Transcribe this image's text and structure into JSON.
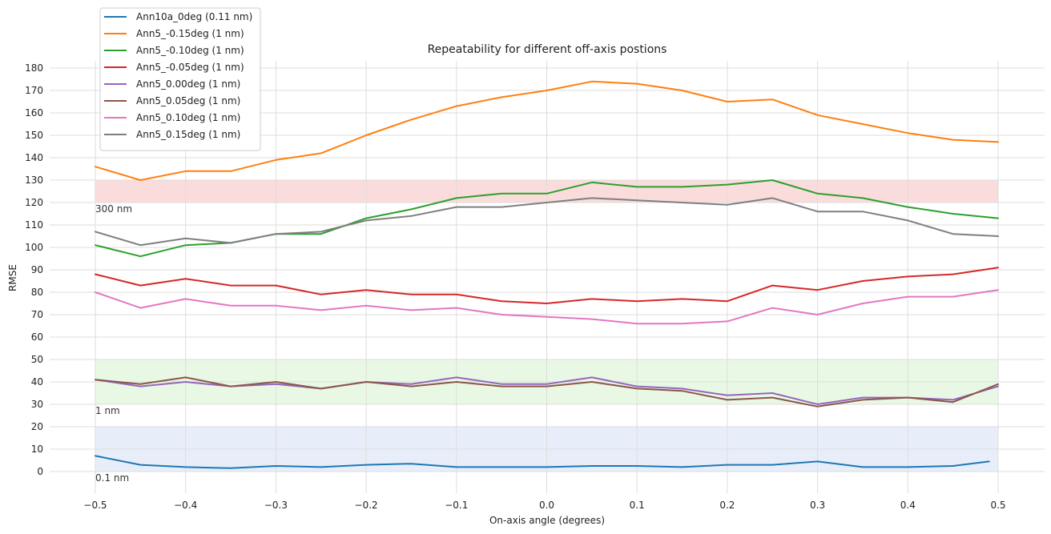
{
  "chart_data": {
    "type": "line",
    "title": "Repeatability for different off-axis postions",
    "xlabel": "On-axis angle (degrees)",
    "ylabel": "RMSE",
    "xlim": [
      -0.5,
      0.5
    ],
    "ylim": [
      0,
      180
    ],
    "xticks": [
      -0.5,
      -0.4,
      -0.3,
      -0.2,
      -0.1,
      0.0,
      0.1,
      0.2,
      0.3,
      0.4,
      0.5
    ],
    "xtick_labels": [
      "−0.5",
      "−0.4",
      "−0.3",
      "−0.2",
      "−0.1",
      "0.0",
      "0.1",
      "0.2",
      "0.3",
      "0.4",
      "0.5"
    ],
    "yticks": [
      0,
      10,
      20,
      30,
      40,
      50,
      60,
      70,
      80,
      90,
      100,
      110,
      120,
      130,
      140,
      150,
      160,
      170,
      180
    ],
    "grid": true,
    "legend_position": "top-left",
    "bands": [
      {
        "label": "300 nm",
        "y0": 120,
        "y1": 130,
        "color": "#fbdcdc"
      },
      {
        "label": "1 nm",
        "y0": 30,
        "y1": 50,
        "color": "#e9f8e5"
      },
      {
        "label": "0.1 nm",
        "y0": 0,
        "y1": 20,
        "color": "#e8eef9"
      }
    ],
    "x": [
      -0.5,
      -0.45,
      -0.4,
      -0.35,
      -0.3,
      -0.25,
      -0.2,
      -0.15,
      -0.1,
      -0.05,
      0.0,
      0.05,
      0.1,
      0.15,
      0.2,
      0.25,
      0.3,
      0.35,
      0.4,
      0.45,
      0.5
    ],
    "series": [
      {
        "name": "Ann10a_0deg (0.11 nm)",
        "color": "#1f77b4",
        "x": [
          -0.5,
          -0.45,
          -0.4,
          -0.35,
          -0.3,
          -0.25,
          -0.2,
          -0.15,
          -0.1,
          -0.05,
          0.0,
          0.05,
          0.1,
          0.15,
          0.2,
          0.25,
          0.3,
          0.35,
          0.4,
          0.45,
          0.49
        ],
        "values": [
          7,
          3,
          2,
          1.5,
          2.5,
          2,
          3,
          3.5,
          2,
          2,
          2,
          2.5,
          2.5,
          2,
          3,
          3,
          4.5,
          2,
          2,
          2.5,
          4.5
        ]
      },
      {
        "name": "Ann5_-0.15deg (1 nm)",
        "color": "#ff7f0e",
        "values": [
          136,
          130,
          134,
          134,
          139,
          142,
          150,
          157,
          163,
          167,
          170,
          174,
          173,
          170,
          165,
          166,
          159,
          155,
          151,
          148,
          147
        ]
      },
      {
        "name": "Ann5_-0.10deg (1 nm)",
        "color": "#2ca02c",
        "values": [
          101,
          96,
          101,
          102,
          106,
          106,
          113,
          117,
          122,
          124,
          124,
          129,
          127,
          127,
          128,
          130,
          124,
          122,
          118,
          115,
          113
        ]
      },
      {
        "name": "Ann5_-0.05deg (1 nm)",
        "color": "#d62728",
        "values": [
          88,
          83,
          86,
          83,
          83,
          79,
          81,
          79,
          79,
          76,
          75,
          77,
          76,
          77,
          76,
          83,
          81,
          85,
          87,
          88,
          91
        ]
      },
      {
        "name": "Ann5_0.00deg (1 nm)",
        "color": "#9467bd",
        "values": [
          41,
          38,
          40,
          38,
          39,
          37,
          40,
          39,
          42,
          39,
          39,
          42,
          38,
          37,
          34,
          35,
          30,
          33,
          33,
          32,
          38
        ]
      },
      {
        "name": "Ann5_0.05deg (1 nm)",
        "color": "#8c564b",
        "values": [
          41,
          39,
          42,
          38,
          40,
          37,
          40,
          38,
          40,
          38,
          38,
          40,
          37,
          36,
          32,
          33,
          29,
          32,
          33,
          31,
          39
        ]
      },
      {
        "name": "Ann5_0.10deg (1 nm)",
        "color": "#e377c2",
        "values": [
          80,
          73,
          77,
          74,
          74,
          72,
          74,
          72,
          73,
          70,
          69,
          68,
          66,
          66,
          67,
          73,
          70,
          75,
          78,
          78,
          81
        ]
      },
      {
        "name": "Ann5_0.15deg (1 nm)",
        "color": "#7f7f7f",
        "values": [
          107,
          101,
          104,
          102,
          106,
          107,
          112,
          114,
          118,
          118,
          120,
          122,
          121,
          120,
          119,
          122,
          116,
          116,
          112,
          106,
          105
        ]
      }
    ]
  }
}
